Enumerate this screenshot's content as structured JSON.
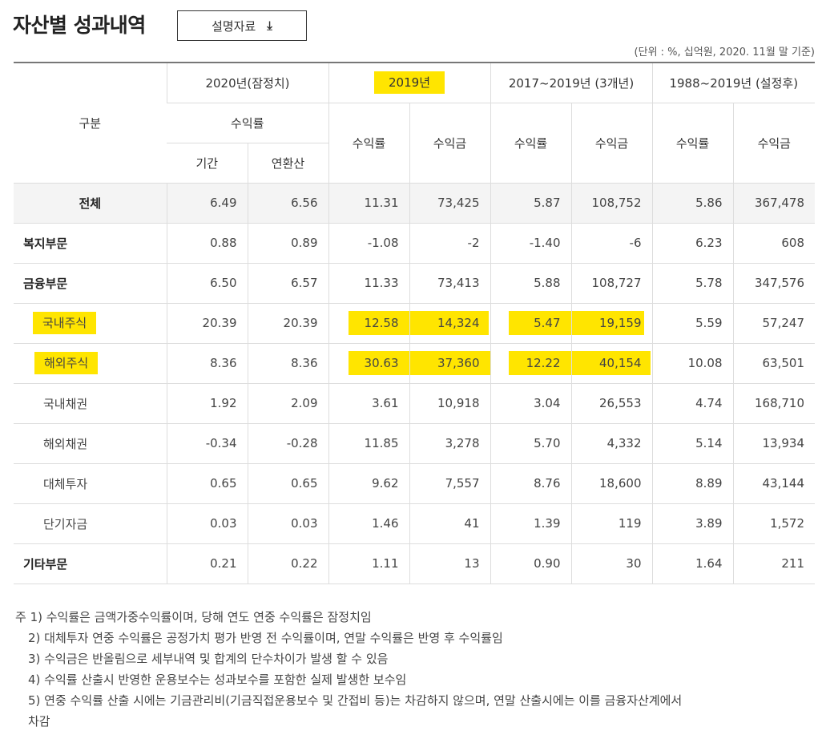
{
  "page": {
    "title": "자산별 성과내역",
    "doc_button_label": "설명자료",
    "download_icon": "download-arrow-icon",
    "unit_note": "(단위 : %, 십억원, 2020. 11월 말 기준)"
  },
  "table": {
    "header": {
      "category": "구분",
      "period_2020": "2020년(잠정치)",
      "period_2019": "2019년",
      "period_3yr": "2017~2019년 (3개년)",
      "period_since": "1988~2019년 (설정후)",
      "return_rate": "수익률",
      "return_amount": "수익금",
      "term": "기간",
      "annualized": "연환산"
    },
    "rows": [
      {
        "label": "전체",
        "v": [
          "6.49",
          "6.56",
          "11.31",
          "73,425",
          "5.87",
          "108,752",
          "5.86",
          "367,478"
        ]
      },
      {
        "label": "복지부문",
        "v": [
          "0.88",
          "0.89",
          "-1.08",
          "-2",
          "-1.40",
          "-6",
          "6.23",
          "608"
        ]
      },
      {
        "label": "금융부문",
        "v": [
          "6.50",
          "6.57",
          "11.33",
          "73,413",
          "5.88",
          "108,727",
          "5.78",
          "347,576"
        ]
      },
      {
        "label": "국내주식",
        "v": [
          "20.39",
          "20.39",
          "12.58",
          "14,324",
          "5.47",
          "19,159",
          "5.59",
          "57,247"
        ]
      },
      {
        "label": "해외주식",
        "v": [
          "8.36",
          "8.36",
          "30.63",
          "37,360",
          "12.22",
          "40,154",
          "10.08",
          "63,501"
        ]
      },
      {
        "label": "국내채권",
        "v": [
          "1.92",
          "2.09",
          "3.61",
          "10,918",
          "3.04",
          "26,553",
          "4.74",
          "168,710"
        ]
      },
      {
        "label": "해외채권",
        "v": [
          "-0.34",
          "-0.28",
          "11.85",
          "3,278",
          "5.70",
          "4,332",
          "5.14",
          "13,934"
        ]
      },
      {
        "label": "대체투자",
        "v": [
          "0.65",
          "0.65",
          "9.62",
          "7,557",
          "8.76",
          "18,600",
          "8.89",
          "43,144"
        ]
      },
      {
        "label": "단기자금",
        "v": [
          "0.03",
          "0.03",
          "1.46",
          "41",
          "1.39",
          "119",
          "3.89",
          "1,572"
        ]
      },
      {
        "label": "기타부문",
        "v": [
          "0.21",
          "0.22",
          "1.11",
          "13",
          "0.90",
          "30",
          "1.64",
          "211"
        ]
      }
    ]
  },
  "notes": [
    "주 1) 수익률은 금액가중수익률이며, 당해 연도 연중 수익률은 잠정치임",
    "2) 대체투자 연중 수익률은 공정가치 평가 반영 전 수익률이며, 연말 수익률은 반영 후 수익률임",
    "3) 수익금은 반올림으로 세부내역 및 합계의 단수차이가 발생 할 수 있음",
    "4) 수익률 산출시 반영한 운용보수는 성과보수를 포함한 실제 발생한 보수임",
    "5) 연중 수익률 산출 시에는 기금관리비(기금직접운용보수 및 간접비 등)는 차감하지 않으며, 연말 산출시에는 이를 금융자산계에서",
    "차감"
  ],
  "highlight_color": "#ffe500"
}
